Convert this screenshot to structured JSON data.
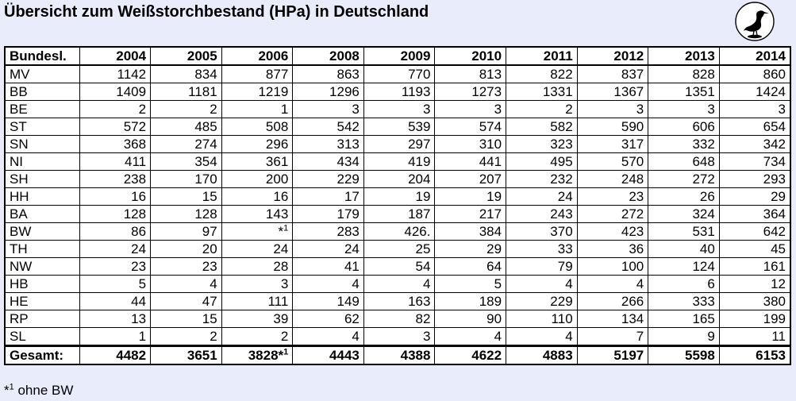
{
  "title": "Übersicht zum Weißstorchbestand (HPa) in Deutschland",
  "logo_icon": "stork-logo",
  "table": {
    "header_first": "Bundesl.",
    "years": [
      "2004",
      "2005",
      "2006",
      "2008",
      "2009",
      "2010",
      "2011",
      "2012",
      "2013",
      "2014"
    ],
    "rows": [
      {
        "state": "MV",
        "values": [
          "1142",
          "834",
          "877",
          "863",
          "770",
          "813",
          "822",
          "837",
          "828",
          "860"
        ]
      },
      {
        "state": "BB",
        "values": [
          "1409",
          "1181",
          "1219",
          "1296",
          "1193",
          "1273",
          "1331",
          "1367",
          "1351",
          "1424"
        ]
      },
      {
        "state": "BE",
        "values": [
          "2",
          "2",
          "1",
          "3",
          "3",
          "3",
          "2",
          "3",
          "3",
          "3"
        ]
      },
      {
        "state": "ST",
        "values": [
          "572",
          "485",
          "508",
          "542",
          "539",
          "574",
          "582",
          "590",
          "606",
          "654"
        ]
      },
      {
        "state": "SN",
        "values": [
          "368",
          "274",
          "296",
          "313",
          "297",
          "310",
          "323",
          "317",
          "332",
          "342"
        ]
      },
      {
        "state": "NI",
        "values": [
          "411",
          "354",
          "361",
          "434",
          "419",
          "441",
          "495",
          "570",
          "648",
          "734"
        ]
      },
      {
        "state": "SH",
        "values": [
          "238",
          "170",
          "200",
          "229",
          "204",
          "207",
          "232",
          "248",
          "272",
          "293"
        ]
      },
      {
        "state": "HH",
        "values": [
          "16",
          "15",
          "16",
          "17",
          "19",
          "19",
          "24",
          "23",
          "26",
          "29"
        ]
      },
      {
        "state": "BA",
        "values": [
          "128",
          "128",
          "143",
          "179",
          "187",
          "217",
          "243",
          "272",
          "324",
          "364"
        ]
      },
      {
        "state": "BW",
        "values": [
          "86",
          "97",
          "*1",
          "283",
          "426.",
          "384",
          "370",
          "423",
          "531",
          "642"
        ]
      },
      {
        "state": "TH",
        "values": [
          "24",
          "20",
          "24",
          "24",
          "25",
          "29",
          "33",
          "36",
          "40",
          "45"
        ]
      },
      {
        "state": "NW",
        "values": [
          "23",
          "23",
          "28",
          "41",
          "54",
          "64",
          "79",
          "100",
          "124",
          "161"
        ]
      },
      {
        "state": "HB",
        "values": [
          "5",
          "4",
          "3",
          "4",
          "4",
          "5",
          "4",
          "4",
          "6",
          "12"
        ]
      },
      {
        "state": "HE",
        "values": [
          "44",
          "47",
          "111",
          "149",
          "163",
          "189",
          "229",
          "266",
          "333",
          "380"
        ]
      },
      {
        "state": "RP",
        "values": [
          "13",
          "15",
          "39",
          "62",
          "82",
          "90",
          "110",
          "134",
          "165",
          "199"
        ]
      },
      {
        "state": "SL",
        "values": [
          "1",
          "2",
          "2",
          "4",
          "3",
          "4",
          "4",
          "7",
          "9",
          "11"
        ]
      }
    ],
    "total_label": "Gesamt:",
    "totals": [
      "4482",
      "3651",
      "3828*1",
      "4443",
      "4388",
      "4622",
      "4883",
      "5197",
      "5598",
      "6153"
    ]
  },
  "footnote": "*1 ohne BW"
}
